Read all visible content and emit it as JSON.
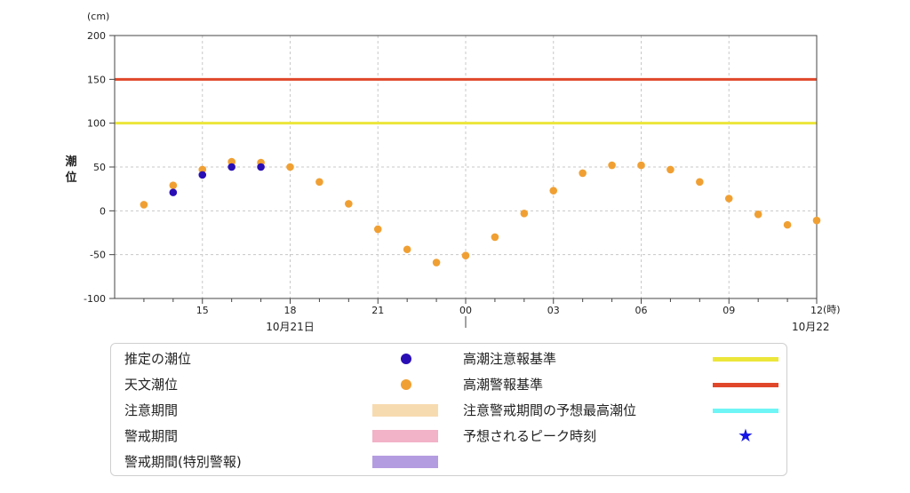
{
  "chart_data": {
    "type": "scatter",
    "y_unit": "(cm)",
    "x_unit": "(時)",
    "ylabel": "潮\n位",
    "ylim": [
      -100,
      200
    ],
    "yticks": [
      -100,
      -50,
      0,
      50,
      100,
      150,
      200
    ],
    "grid": true,
    "x_start": "10月21日 12時",
    "x_end": "10月22日 12時",
    "x_tick_labels": [
      "15",
      "18",
      "21",
      "00",
      "03",
      "06",
      "09",
      "12"
    ],
    "date_labels": [
      "10月21日",
      "10月22"
    ],
    "reference_lines": [
      {
        "name": "高潮警報基準",
        "value": 150,
        "color": "#e0472a"
      },
      {
        "name": "高潮注意報基準",
        "value": 100,
        "color": "#ece63a"
      }
    ],
    "series": [
      {
        "name": "天文潮位",
        "color": "#f0a033",
        "x_hours": [
          13,
          14,
          15,
          16,
          17,
          18,
          19,
          20,
          21,
          22,
          23,
          24,
          25,
          26,
          27,
          28,
          29,
          30,
          31,
          32,
          33,
          34,
          35,
          36
        ],
        "values": [
          7,
          29,
          47,
          56,
          55,
          50,
          33,
          8,
          -21,
          -44,
          -59,
          -51,
          -30,
          -3,
          23,
          43,
          52,
          52,
          47,
          33,
          14,
          -4,
          -16,
          -11
        ]
      },
      {
        "name": "推定の潮位",
        "color": "#2a0eb5",
        "x_hours": [
          14,
          15,
          16,
          17
        ],
        "values": [
          21,
          41,
          50,
          50
        ]
      }
    ]
  },
  "legend": {
    "items": [
      {
        "label": "推定の潮位",
        "kind": "dot",
        "color": "#2a0eb5"
      },
      {
        "label": "天文潮位",
        "kind": "dot",
        "color": "#f0a033"
      },
      {
        "label": "注意期間",
        "kind": "band",
        "color": "#f7dbb0"
      },
      {
        "label": "警戒期間",
        "kind": "band",
        "color": "#f2b2c8"
      },
      {
        "label": "警戒期間(特別警報)",
        "kind": "band",
        "color": "#b49ce0"
      },
      {
        "label": "高潮注意報基準",
        "kind": "line",
        "color": "#ece63a"
      },
      {
        "label": "高潮警報基準",
        "kind": "line",
        "color": "#e0472a"
      },
      {
        "label": "注意警戒期間の予想最高潮位",
        "kind": "line",
        "color": "#6ff5f5"
      },
      {
        "label": "予想されるピーク時刻",
        "kind": "star",
        "color": "#1515e6"
      }
    ]
  }
}
